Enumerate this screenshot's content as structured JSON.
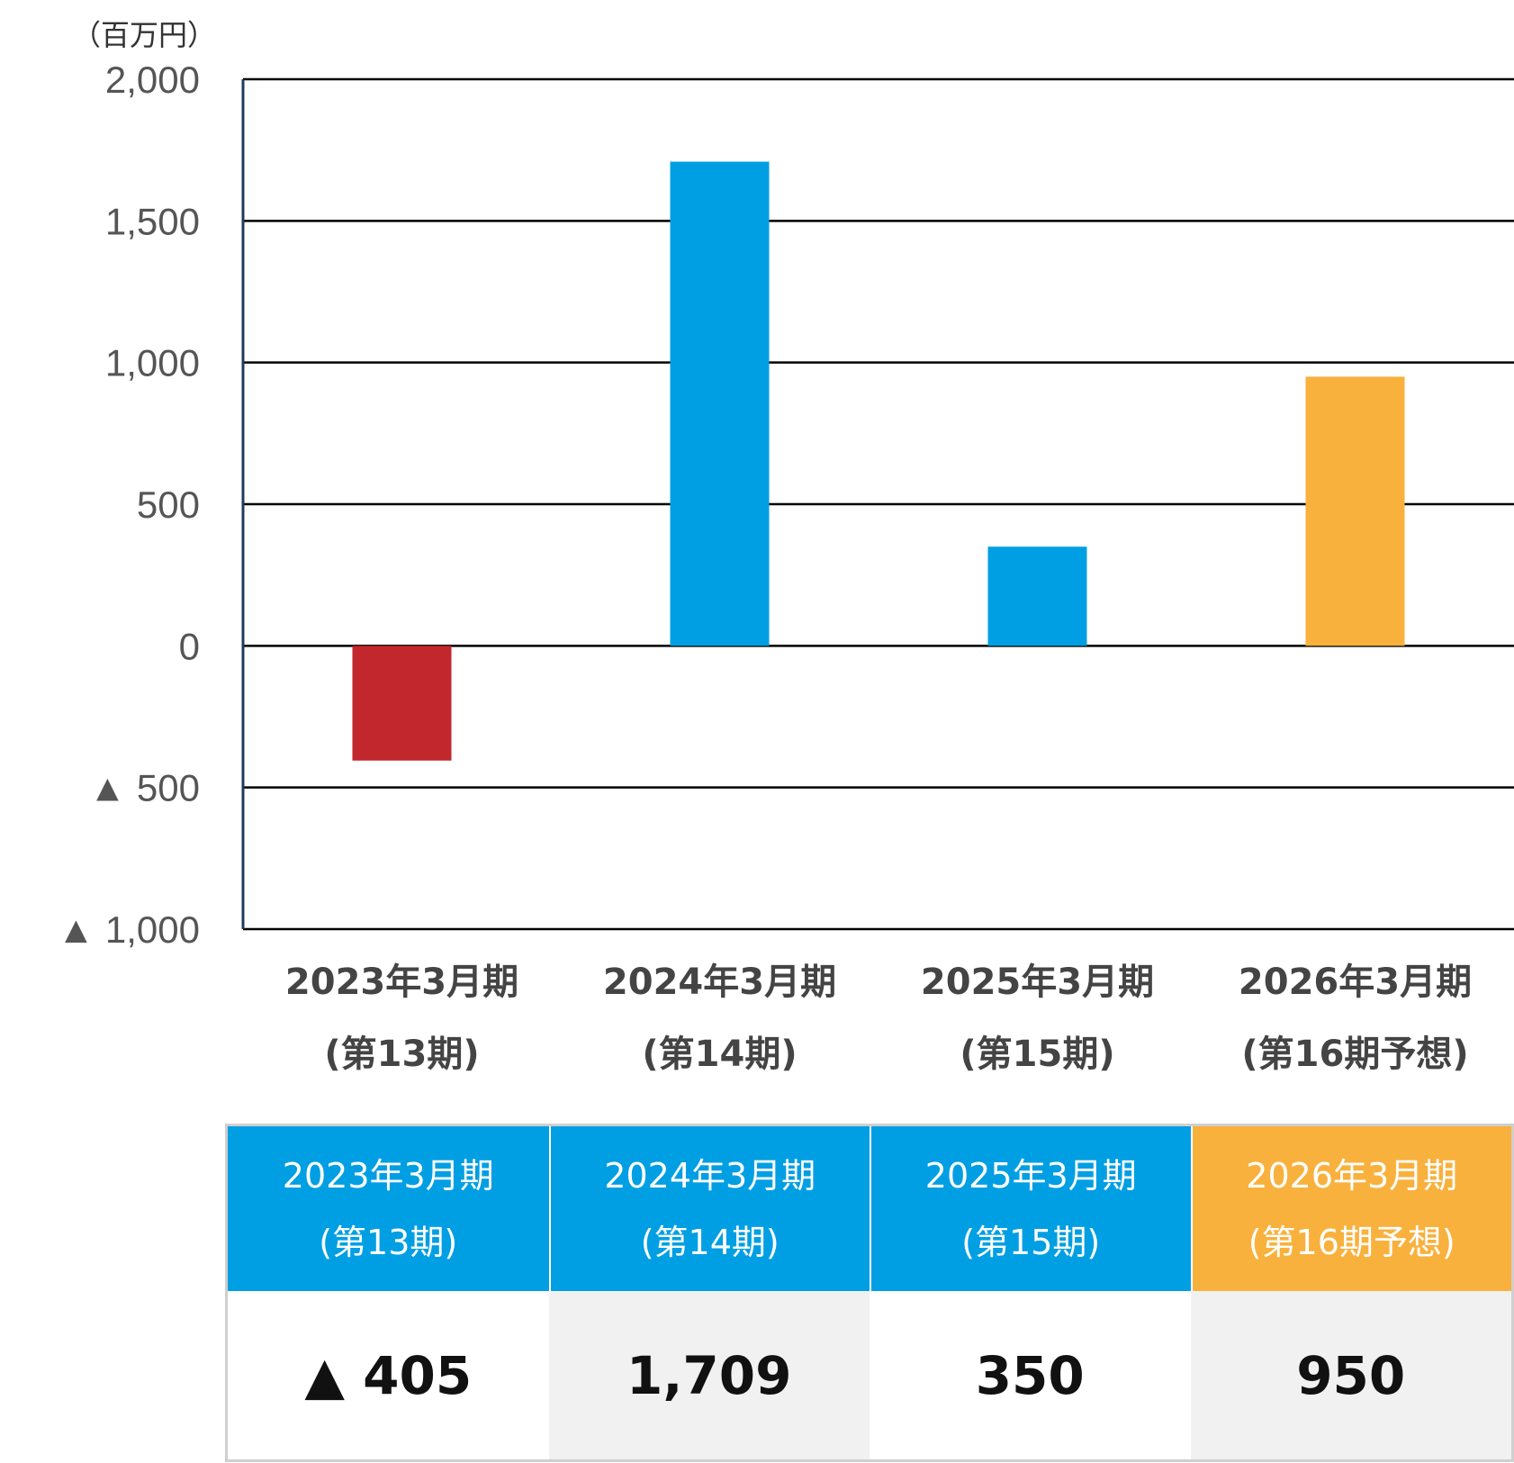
{
  "chart_data": {
    "type": "bar",
    "unit_label": "（百万円）",
    "categories": [
      [
        "2023年3月期",
        "(第13期)"
      ],
      [
        "2024年3月期",
        "(第14期)"
      ],
      [
        "2025年3月期",
        "(第15期)"
      ],
      [
        "2026年3月期",
        "(第16期予想)"
      ]
    ],
    "values": [
      -405,
      1709,
      350,
      950
    ],
    "bar_colors": [
      "#c1272d",
      "#009fe3",
      "#009fe3",
      "#f9b13d"
    ],
    "ylim": [
      -1000,
      2000
    ],
    "yticks": [
      2000,
      1500,
      1000,
      500,
      0,
      -500,
      -1000
    ],
    "ytick_labels": [
      "2,000",
      "1,500",
      "1,000",
      "500",
      "0",
      "▲ 500",
      "▲ 1,000"
    ],
    "grid": true
  },
  "table": {
    "headers": [
      {
        "line1": "2023年3月期",
        "line2": "(第13期)",
        "bg": "#009fe3"
      },
      {
        "line1": "2024年3月期",
        "line2": "(第14期)",
        "bg": "#009fe3"
      },
      {
        "line1": "2025年3月期",
        "line2": "(第15期)",
        "bg": "#009fe3"
      },
      {
        "line1": "2026年3月期",
        "line2": "(第16期予想)",
        "bg": "#f9b13d"
      }
    ],
    "values": [
      "▲ 405",
      "1,709",
      "350",
      "950"
    ]
  }
}
